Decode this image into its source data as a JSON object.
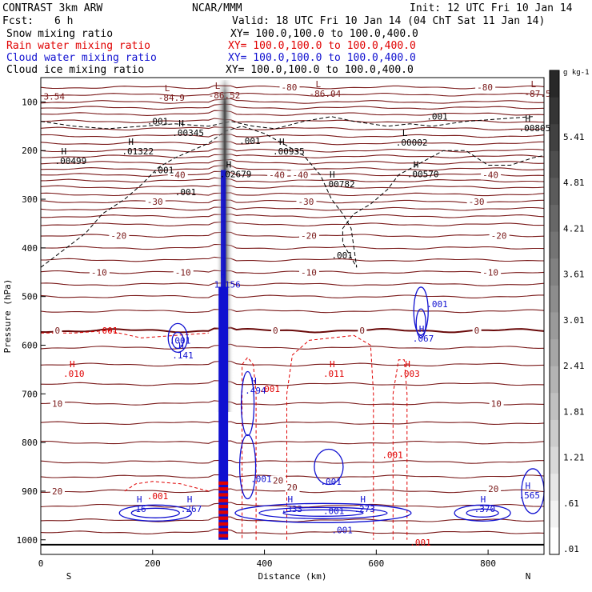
{
  "header": {
    "left_title": "CONTRAST  3km ARW",
    "center_title": "NCAR/MMM",
    "init": "Init: 12 UTC Fri 10 Jan 14",
    "fcst_label": "Fcst:",
    "fcst_value": "6 h",
    "valid": "Valid: 18 UTC Fri 10 Jan 14 (04 ChT Sat 11 Jan 14)"
  },
  "fields": [
    {
      "name": "Snow mixing ratio",
      "xy": "XY= 100.0,100.0 to 100.0,400.0",
      "color": "#000000"
    },
    {
      "name": "Rain water mixing ratio",
      "xy": "XY= 100.0,100.0 to 100.0,400.0",
      "color": "#e00000"
    },
    {
      "name": "Cloud water mixing ratio",
      "xy": "XY= 100.0,100.0 to 100.0,400.0",
      "color": "#1010d0"
    },
    {
      "name": "Cloud ice mixing ratio",
      "xy": "XY= 100.0,100.0 to 100.0,400.0",
      "color": "#000000"
    }
  ],
  "colors": {
    "temperature": "#7a1a1a",
    "zero_line": "#6a0a0a",
    "rain": "#e00000",
    "cloud_water": "#1010d0",
    "ice": "#000000"
  },
  "chart_data": {
    "type": "cross-section",
    "xlabel": "Distance (km)",
    "ylabel": "Pressure (hPa)",
    "x_ticks": [
      0,
      200,
      400,
      600,
      800
    ],
    "xlim": [
      0,
      900
    ],
    "y_ticks": [
      100,
      200,
      300,
      400,
      500,
      600,
      700,
      800,
      900,
      1000
    ],
    "ylim": [
      50,
      1030
    ],
    "endpoints": {
      "left": "S",
      "right": "N"
    },
    "colorbar": {
      "unit": "g kg-1",
      "labels": [
        "5.41",
        "4.81",
        "4.21",
        "3.61",
        "3.01",
        "2.41",
        "1.81",
        "1.21",
        ".61",
        ".01"
      ]
    },
    "temperature_labels": [
      {
        "text": "-80",
        "x": 430,
        "p": 70
      },
      {
        "text": "-80",
        "x": 780,
        "p": 70
      },
      {
        "text": "-40",
        "x": 230,
        "p": 250
      },
      {
        "text": "-40",
        "x": 408,
        "p": 250
      },
      {
        "text": "-40",
        "x": 450,
        "p": 250
      },
      {
        "text": "-40",
        "x": 790,
        "p": 250
      },
      {
        "text": "-30",
        "x": 190,
        "p": 305
      },
      {
        "text": "-30",
        "x": 460,
        "p": 305
      },
      {
        "text": "-30",
        "x": 765,
        "p": 305
      },
      {
        "text": "-20",
        "x": 125,
        "p": 375
      },
      {
        "text": "-20",
        "x": 465,
        "p": 375
      },
      {
        "text": "-20",
        "x": 805,
        "p": 375
      },
      {
        "text": "-10",
        "x": 90,
        "p": 450
      },
      {
        "text": "-10",
        "x": 240,
        "p": 450
      },
      {
        "text": "-10",
        "x": 465,
        "p": 450
      },
      {
        "text": "-10",
        "x": 790,
        "p": 450
      },
      {
        "text": "0",
        "x": 25,
        "p": 570
      },
      {
        "text": "0",
        "x": 415,
        "p": 570
      },
      {
        "text": "0",
        "x": 570,
        "p": 570
      },
      {
        "text": "0",
        "x": 775,
        "p": 570
      },
      {
        "text": "10",
        "x": 20,
        "p": 720
      },
      {
        "text": "10",
        "x": 805,
        "p": 720
      },
      {
        "text": "20",
        "x": 20,
        "p": 900
      },
      {
        "text": "20",
        "x": 415,
        "p": 878
      },
      {
        "text": "20",
        "x": 440,
        "p": 892
      },
      {
        "text": "20",
        "x": 800,
        "p": 895
      }
    ],
    "high_low_labels": [
      {
        "mark": "L",
        "value": "-84.9",
        "x": 210,
        "p": 88,
        "color": "temperature"
      },
      {
        "mark": "L",
        "value": "-86.52",
        "x": 300,
        "p": 83,
        "color": "temperature"
      },
      {
        "mark": "L",
        "value": "-86.04",
        "x": 480,
        "p": 80,
        "color": "temperature"
      },
      {
        "mark": "L",
        "value": "-87.5",
        "x": 865,
        "p": 80,
        "color": "temperature"
      },
      {
        "mark": "",
        "value": "3.54",
        "x": 5,
        "p": 85,
        "color": "temperature"
      },
      {
        "mark": "H",
        "value": ".00345",
        "x": 235,
        "p": 160,
        "color": "ice"
      },
      {
        "mark": "H",
        "value": ".01322",
        "x": 145,
        "p": 198,
        "color": "ice"
      },
      {
        "mark": "H",
        "value": ".00499",
        "x": 25,
        "p": 218,
        "color": "ice"
      },
      {
        "mark": "H",
        "value": ".00935",
        "x": 415,
        "p": 198,
        "color": "ice"
      },
      {
        "mark": "L",
        "value": ".00002",
        "x": 635,
        "p": 180,
        "color": "ice"
      },
      {
        "mark": "H",
        "value": ".00570",
        "x": 655,
        "p": 245,
        "color": "ice"
      },
      {
        "mark": "H",
        "value": ".00782",
        "x": 505,
        "p": 265,
        "color": "ice"
      },
      {
        "mark": "H",
        "value": ".02679",
        "x": 320,
        "p": 245,
        "color": "ice"
      },
      {
        "mark": "H",
        "value": ".00805",
        "x": 855,
        "p": 150,
        "color": "ice"
      },
      {
        "mark": "H",
        "value": "1.156",
        "x": 310,
        "p": 472,
        "color": "cloud_water"
      },
      {
        "mark": "H",
        "value": ".141",
        "x": 235,
        "p": 617,
        "color": "cloud_water"
      },
      {
        "mark": "H",
        "value": ".494",
        "x": 365,
        "p": 690,
        "color": "cloud_water"
      },
      {
        "mark": "H",
        "value": ".067",
        "x": 665,
        "p": 583,
        "color": "cloud_water"
      },
      {
        "mark": "H",
        "value": ".16",
        "x": 160,
        "p": 933,
        "color": "cloud_water"
      },
      {
        "mark": "H",
        "value": ".267",
        "x": 250,
        "p": 933,
        "color": "cloud_water"
      },
      {
        "mark": "H",
        "value": ".333",
        "x": 430,
        "p": 933,
        "color": "cloud_water"
      },
      {
        "mark": "H",
        "value": ".273",
        "x": 560,
        "p": 933,
        "color": "cloud_water"
      },
      {
        "mark": "H",
        "value": ".370",
        "x": 775,
        "p": 933,
        "color": "cloud_water"
      },
      {
        "mark": "H",
        "value": ".565",
        "x": 855,
        "p": 905,
        "color": "cloud_water"
      },
      {
        "mark": "H",
        "value": ".010",
        "x": 40,
        "p": 655,
        "color": "rain"
      },
      {
        "mark": "H",
        "value": ".011",
        "x": 505,
        "p": 655,
        "color": "rain"
      },
      {
        "mark": "H",
        "value": ".003",
        "x": 640,
        "p": 655,
        "color": "rain"
      }
    ],
    "contour_value_labels": [
      {
        "text": ".001",
        "x": 190,
        "p": 140,
        "color": "ice"
      },
      {
        "text": ".001",
        "x": 355,
        "p": 180,
        "color": "ice"
      },
      {
        "text": ".001",
        "x": 690,
        "p": 130,
        "color": "ice"
      },
      {
        "text": ".001",
        "x": 200,
        "p": 240,
        "color": "ice"
      },
      {
        "text": ".001",
        "x": 240,
        "p": 285,
        "color": "ice"
      },
      {
        "text": ".001",
        "x": 520,
        "p": 415,
        "color": "ice"
      },
      {
        "text": ".001",
        "x": 100,
        "p": 570,
        "color": "rain"
      },
      {
        "text": ".001",
        "x": 390,
        "p": 690,
        "color": "rain"
      },
      {
        "text": ".001",
        "x": 610,
        "p": 825,
        "color": "rain"
      },
      {
        "text": ".001",
        "x": 190,
        "p": 910,
        "color": "rain"
      },
      {
        "text": ".001",
        "x": 660,
        "p": 1005,
        "color": "rain"
      },
      {
        "text": ".001",
        "x": 690,
        "p": 515,
        "color": "cloud_water"
      },
      {
        "text": ".001",
        "x": 230,
        "p": 590,
        "color": "cloud_water"
      },
      {
        "text": ".001",
        "x": 375,
        "p": 875,
        "color": "cloud_water"
      },
      {
        "text": ".001",
        "x": 500,
        "p": 880,
        "color": "cloud_water"
      },
      {
        "text": ".001",
        "x": 505,
        "p": 940,
        "color": "cloud_water"
      },
      {
        "text": ".001",
        "x": 520,
        "p": 980,
        "color": "cloud_water"
      }
    ]
  }
}
